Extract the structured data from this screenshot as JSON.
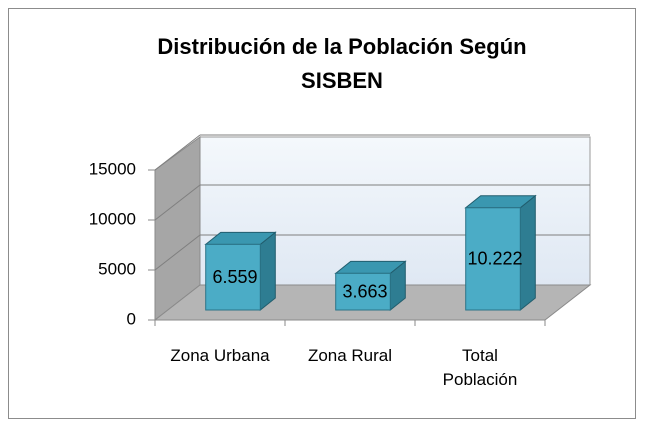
{
  "chart_data": {
    "type": "bar3d",
    "title": "Distribución de la Población Según SISBEN",
    "categories": [
      "Zona Urbana",
      "Zona Rural",
      "Total Población"
    ],
    "values": [
      6559,
      3663,
      10222
    ],
    "value_labels": [
      "6.559",
      "3.663",
      "10.222"
    ],
    "color": "#4bacc6",
    "ylim": [
      0,
      15000
    ],
    "yticks": [
      0,
      5000,
      10000,
      15000
    ],
    "grid": true
  }
}
